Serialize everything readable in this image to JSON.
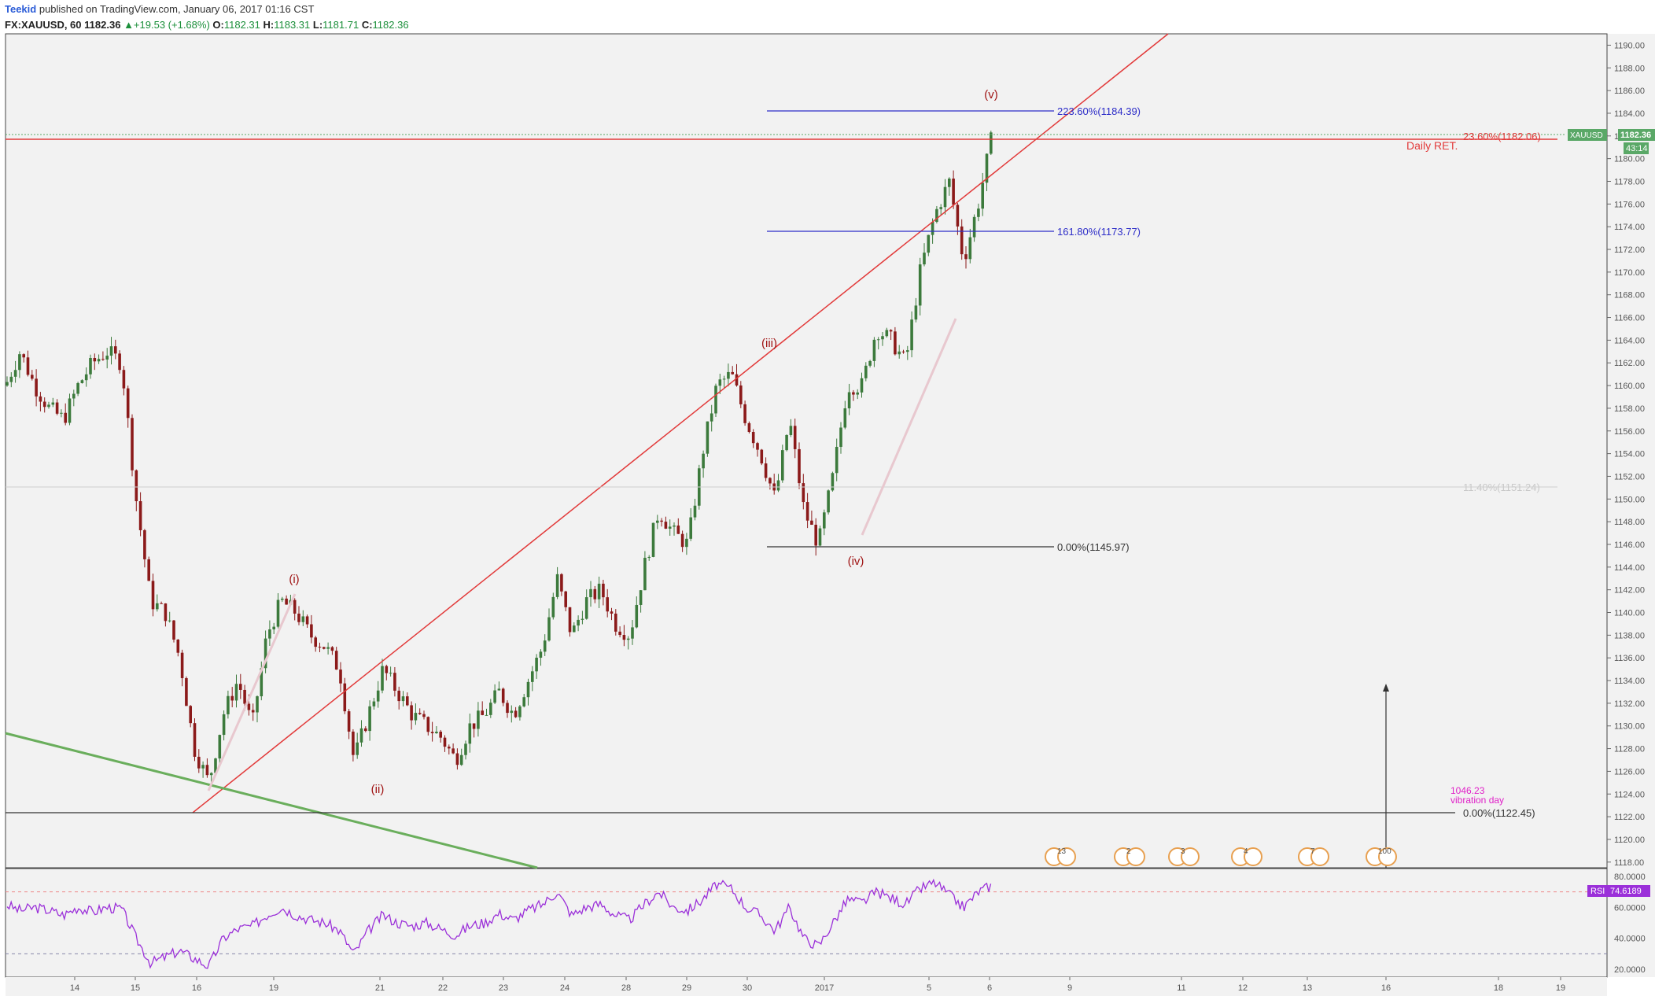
{
  "header": {
    "line1_author": "Teekid",
    "line1_rest": "published on TradingView.com, January 06, 2017 01:16 CST",
    "symbol": "FX:XAUUSD, 60",
    "last": "1182.36",
    "change": "▲+19.53 (+1.68%)",
    "o_label": "O:",
    "o_val": "1182.31",
    "h_label": "H:",
    "h_val": "1183.31",
    "l_label": "L:",
    "l_val": "1181.71",
    "c_label": "C:",
    "c_val": "1182.36"
  },
  "colors": {
    "up": "#3c7a3c",
    "down": "#8b1a1a",
    "trend": "#e23a3a",
    "green_line": "#6aae5c",
    "fib_blue": "#2d2dc8",
    "rsi": "#9b30d9",
    "price_tag": "#5aa867",
    "wave_label": "#a01515",
    "vib": "#e020c8",
    "bg": "#f2f2f2"
  },
  "chart_data": {
    "type": "candlestick",
    "title": "",
    "symbol": "FX:XAUUSD",
    "timeframe": "60",
    "ylim": [
      1117.5,
      1191
    ],
    "y_ticks": [
      "1190.00",
      "1188.00",
      "1186.00",
      "1184.00",
      "1182.00",
      "1180.00",
      "1178.00",
      "1176.00",
      "1174.00",
      "1172.00",
      "1170.00",
      "1168.00",
      "1166.00",
      "1164.00",
      "1162.00",
      "1160.00",
      "1158.00",
      "1156.00",
      "1154.00",
      "1152.00",
      "1150.00",
      "1148.00",
      "1146.00",
      "1144.00",
      "1142.00",
      "1140.00",
      "1138.00",
      "1136.00",
      "1134.00",
      "1132.00",
      "1130.00",
      "1128.00",
      "1126.00",
      "1124.00",
      "1122.00",
      "1120.00",
      "1118.00"
    ],
    "x_ticks": [
      "14",
      "15",
      "16",
      "19",
      "21",
      "22",
      "23",
      "24",
      "28",
      "29",
      "30",
      "2017",
      "5",
      "6",
      "9",
      "11",
      "12",
      "13",
      "16",
      "18",
      "19"
    ],
    "price_path": [
      [
        0,
        1160
      ],
      [
        1,
        1163
      ],
      [
        2,
        1160
      ],
      [
        3,
        1158
      ],
      [
        4,
        1157
      ],
      [
        5,
        1160
      ],
      [
        6,
        1162
      ],
      [
        7,
        1163
      ],
      [
        8,
        1162
      ],
      [
        9,
        1150
      ],
      [
        10,
        1141
      ],
      [
        11,
        1140
      ],
      [
        12,
        1136
      ],
      [
        13,
        1128
      ],
      [
        14,
        1125
      ],
      [
        15,
        1131
      ],
      [
        16,
        1134
      ],
      [
        17,
        1130
      ],
      [
        18,
        1138
      ],
      [
        19,
        1141
      ],
      [
        20,
        1140
      ],
      [
        21,
        1138
      ],
      [
        22,
        1137
      ],
      [
        23,
        1135
      ],
      [
        24,
        1127
      ],
      [
        25,
        1131
      ],
      [
        26,
        1135
      ],
      [
        27,
        1133
      ],
      [
        28,
        1131
      ],
      [
        29,
        1130
      ],
      [
        30,
        1129
      ],
      [
        31,
        1127
      ],
      [
        32,
        1130
      ],
      [
        33,
        1131
      ],
      [
        34,
        1133
      ],
      [
        35,
        1131
      ],
      [
        36,
        1134
      ],
      [
        37,
        1137
      ],
      [
        38,
        1143
      ],
      [
        39,
        1138
      ],
      [
        40,
        1141
      ],
      [
        41,
        1142
      ],
      [
        42,
        1139
      ],
      [
        43,
        1138
      ],
      [
        44,
        1144
      ],
      [
        45,
        1149
      ],
      [
        46,
        1147
      ],
      [
        47,
        1146
      ],
      [
        48,
        1154
      ],
      [
        49,
        1160
      ],
      [
        50,
        1161
      ],
      [
        51,
        1157
      ],
      [
        52,
        1154
      ],
      [
        53,
        1150
      ],
      [
        54,
        1157
      ],
      [
        55,
        1149
      ],
      [
        56,
        1146
      ],
      [
        57,
        1152
      ],
      [
        58,
        1160
      ],
      [
        59,
        1160
      ],
      [
        60,
        1165
      ],
      [
        61,
        1164
      ],
      [
        62,
        1162
      ],
      [
        63,
        1170
      ],
      [
        64,
        1175
      ],
      [
        65,
        1178
      ],
      [
        66,
        1171
      ],
      [
        67,
        1176
      ],
      [
        68,
        1182.3
      ]
    ],
    "annotations": {
      "waves": [
        "(i)",
        "(ii)",
        "(iii)",
        "(iv)",
        "(v)"
      ],
      "fib_223": "223.60%(1184.39)",
      "fib_161": "161.80%(1173.77)",
      "fib_0_upper": "0.00%(1145.97)",
      "fib_0_lower": "0.00%(1122.45)",
      "ret_23": "23.60%(1182.06)",
      "ret_11": "11.40%(1151.24)",
      "daily_ret": "Daily RET.",
      "vib_value": "1046.23",
      "vib_text": "vibration day"
    },
    "price_tags": {
      "symbol": "XAUUSD",
      "price": "1182.36",
      "timer": "43:14"
    },
    "event_badges": [
      "13",
      "2",
      "2",
      "3",
      "4",
      "7",
      "100"
    ],
    "rsi": {
      "label": "RSI",
      "value": "74.6189",
      "y_ticks": [
        "80.0000",
        "60.0000",
        "40.0000",
        "20.0000"
      ],
      "ylim": [
        15,
        85
      ],
      "levels": [
        70,
        30
      ],
      "path": [
        [
          0,
          62
        ],
        [
          1,
          58
        ],
        [
          2,
          60
        ],
        [
          3,
          58
        ],
        [
          4,
          55
        ],
        [
          5,
          60
        ],
        [
          6,
          57
        ],
        [
          7,
          60
        ],
        [
          8,
          59
        ],
        [
          9,
          40
        ],
        [
          10,
          24
        ],
        [
          11,
          28
        ],
        [
          12,
          32
        ],
        [
          13,
          27
        ],
        [
          14,
          22
        ],
        [
          15,
          40
        ],
        [
          16,
          46
        ],
        [
          17,
          48
        ],
        [
          18,
          55
        ],
        [
          19,
          60
        ],
        [
          20,
          55
        ],
        [
          21,
          52
        ],
        [
          22,
          50
        ],
        [
          23,
          45
        ],
        [
          24,
          30
        ],
        [
          25,
          45
        ],
        [
          26,
          55
        ],
        [
          27,
          50
        ],
        [
          28,
          48
        ],
        [
          29,
          50
        ],
        [
          30,
          46
        ],
        [
          31,
          42
        ],
        [
          32,
          48
        ],
        [
          33,
          50
        ],
        [
          34,
          56
        ],
        [
          35,
          52
        ],
        [
          36,
          58
        ],
        [
          37,
          62
        ],
        [
          38,
          70
        ],
        [
          39,
          55
        ],
        [
          40,
          60
        ],
        [
          41,
          62
        ],
        [
          42,
          55
        ],
        [
          43,
          52
        ],
        [
          44,
          62
        ],
        [
          45,
          70
        ],
        [
          46,
          60
        ],
        [
          47,
          58
        ],
        [
          48,
          65
        ],
        [
          49,
          75
        ],
        [
          50,
          72
        ],
        [
          51,
          60
        ],
        [
          52,
          55
        ],
        [
          53,
          45
        ],
        [
          54,
          60
        ],
        [
          55,
          40
        ],
        [
          56,
          35
        ],
        [
          57,
          50
        ],
        [
          58,
          65
        ],
        [
          59,
          63
        ],
        [
          60,
          70
        ],
        [
          61,
          66
        ],
        [
          62,
          62
        ],
        [
          63,
          72
        ],
        [
          64,
          76
        ],
        [
          65,
          68
        ],
        [
          66,
          60
        ],
        [
          67,
          70
        ],
        [
          68,
          74.6
        ]
      ]
    }
  }
}
